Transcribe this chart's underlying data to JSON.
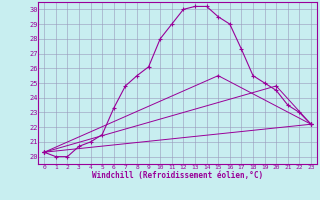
{
  "xlabel": "Windchill (Refroidissement éolien,°C)",
  "bg_color": "#c8eef0",
  "line_color": "#990099",
  "grid_color": "#9999bb",
  "xlim": [
    -0.5,
    23.5
  ],
  "ylim": [
    19.5,
    30.5
  ],
  "xticks": [
    0,
    1,
    2,
    3,
    4,
    5,
    6,
    7,
    8,
    9,
    10,
    11,
    12,
    13,
    14,
    15,
    16,
    17,
    18,
    19,
    20,
    21,
    22,
    23
  ],
  "yticks": [
    20,
    21,
    22,
    23,
    24,
    25,
    26,
    27,
    28,
    29,
    30
  ],
  "curve1_x": [
    0,
    1,
    2,
    3,
    4,
    5,
    6,
    7,
    8,
    9,
    10,
    11,
    12,
    13,
    14,
    15,
    16,
    17,
    18,
    19,
    20,
    21,
    22,
    23
  ],
  "curve1_y": [
    20.3,
    20.0,
    20.0,
    20.7,
    21.0,
    21.5,
    23.3,
    24.8,
    25.5,
    26.1,
    28.0,
    29.0,
    30.0,
    30.2,
    30.2,
    29.5,
    29.0,
    27.3,
    25.5,
    25.0,
    24.5,
    23.5,
    23.0,
    22.2
  ],
  "curve2_x": [
    0,
    15,
    23
  ],
  "curve2_y": [
    20.3,
    25.5,
    22.2
  ],
  "curve3_x": [
    0,
    20,
    23
  ],
  "curve3_y": [
    20.3,
    24.8,
    22.2
  ],
  "curve4_x": [
    0,
    23
  ],
  "curve4_y": [
    20.3,
    22.2
  ],
  "marker": "+"
}
